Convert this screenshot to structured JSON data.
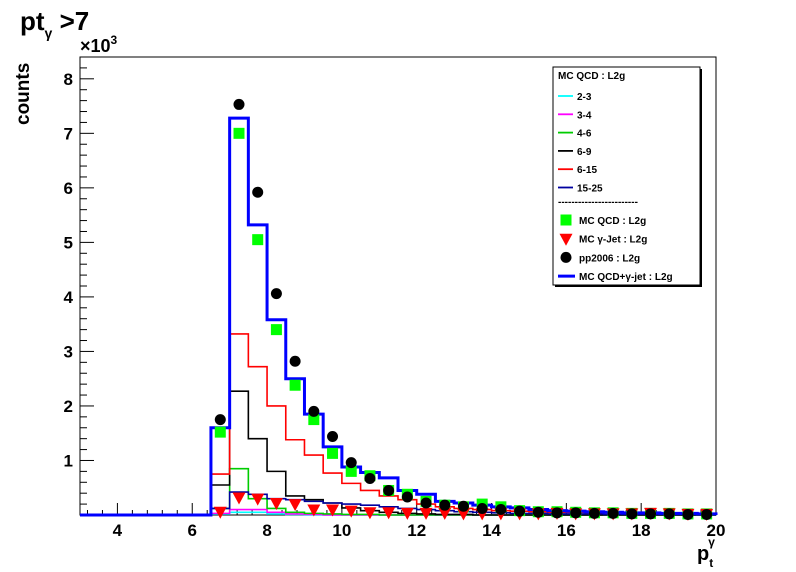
{
  "chart_data": {
    "type": "line",
    "title_main": "pt",
    "title_sub": "γ",
    "title_rest": " >7",
    "ylabel": "counts",
    "xlabel_main": "p",
    "xlabel_sub": "t",
    "xlabel_sup": "γ",
    "multiplier_base": "×10",
    "multiplier_exp": "3",
    "xlim": [
      3,
      20
    ],
    "ylim": [
      0,
      8.4
    ],
    "xticks": [
      4,
      6,
      8,
      10,
      12,
      14,
      16,
      18,
      20
    ],
    "yticks": [
      1,
      2,
      3,
      4,
      5,
      6,
      7,
      8
    ],
    "bin_edges": [
      3.0,
      3.5,
      4.0,
      4.5,
      5.0,
      5.5,
      6.0,
      6.5,
      7.0,
      7.5,
      8.0,
      8.5,
      9.0,
      9.5,
      10.0,
      10.5,
      11.0,
      11.5,
      12.0,
      12.5,
      13.0,
      13.5,
      14.0,
      14.5,
      15.0,
      15.5,
      16.0,
      16.5,
      17.0,
      17.5,
      18.0,
      18.5,
      19.0,
      19.5,
      20.0
    ],
    "legend": {
      "header": "MC QCD : L2g",
      "separator": "------------------------",
      "placement": "top-right"
    },
    "histograms": [
      {
        "name": "2-3",
        "color": "#00ffff",
        "values": [
          0,
          0,
          0,
          0,
          0,
          0,
          0,
          0.02,
          0.05,
          0.05,
          0.02,
          0.01,
          0,
          0,
          0,
          0,
          0,
          0,
          0,
          0,
          0,
          0,
          0,
          0,
          0,
          0,
          0,
          0,
          0,
          0,
          0,
          0,
          0,
          0
        ]
      },
      {
        "name": "3-4",
        "color": "#ff00ff",
        "values": [
          0,
          0,
          0,
          0,
          0,
          0,
          0,
          0.03,
          0.1,
          0.1,
          0.05,
          0.02,
          0.01,
          0,
          0,
          0,
          0,
          0,
          0,
          0,
          0,
          0,
          0,
          0,
          0,
          0,
          0,
          0,
          0,
          0,
          0,
          0,
          0,
          0
        ]
      },
      {
        "name": "4-6",
        "color": "#00cc00",
        "values": [
          0,
          0,
          0,
          0,
          0,
          0,
          0,
          0.12,
          0.85,
          0.3,
          0.12,
          0.05,
          0.03,
          0.02,
          0.01,
          0.01,
          0,
          0,
          0,
          0,
          0,
          0,
          0,
          0,
          0,
          0,
          0,
          0,
          0,
          0,
          0,
          0,
          0,
          0
        ]
      },
      {
        "name": "6-9",
        "color": "#000000",
        "values": [
          0,
          0,
          0,
          0,
          0,
          0,
          0,
          0.55,
          2.27,
          1.4,
          0.8,
          0.35,
          0.28,
          0.22,
          0.13,
          0.08,
          0.05,
          0.03,
          0.02,
          0.01,
          0.01,
          0,
          0,
          0,
          0,
          0,
          0,
          0,
          0,
          0,
          0,
          0,
          0,
          0
        ]
      },
      {
        "name": "6-15",
        "color": "#ff0000",
        "values": [
          0,
          0,
          0,
          0,
          0,
          0,
          0,
          0.75,
          3.32,
          2.72,
          2.0,
          1.38,
          1.1,
          0.77,
          0.58,
          0.45,
          0.35,
          0.28,
          0.2,
          0.15,
          0.12,
          0.1,
          0.08,
          0.07,
          0.06,
          0.05,
          0.05,
          0.04,
          0.04,
          0.03,
          0.03,
          0.02,
          0.02,
          0.02
        ]
      },
      {
        "name": "15-25",
        "color": "#0000a0",
        "values": [
          0,
          0,
          0,
          0,
          0,
          0,
          0,
          0.12,
          0.42,
          0.38,
          0.3,
          0.28,
          0.25,
          0.22,
          0.2,
          0.18,
          0.15,
          0.12,
          0.1,
          0.08,
          0.06,
          0.05,
          0.04,
          0.03,
          0.03,
          0.02,
          0.02,
          0.02,
          0.01,
          0.01,
          0.01,
          0.01,
          0.01,
          0.01
        ]
      }
    ],
    "series": [
      {
        "name": "MC QCD : L2g",
        "marker": "square",
        "color": "#00ff00",
        "x": [
          6.75,
          7.25,
          7.75,
          8.25,
          8.75,
          9.25,
          9.75,
          10.25,
          10.75,
          11.25,
          11.75,
          12.25,
          12.75,
          13.25,
          13.75,
          14.25,
          14.75,
          15.25,
          15.75,
          16.25,
          16.75,
          17.25,
          17.75,
          18.25,
          18.75,
          19.25,
          19.75
        ],
        "y": [
          1.52,
          7.0,
          5.05,
          3.4,
          2.38,
          1.75,
          1.13,
          0.8,
          0.72,
          0.45,
          0.38,
          0.25,
          0.18,
          0.15,
          0.2,
          0.15,
          0.08,
          0.06,
          0.06,
          0.05,
          0.04,
          0.04,
          0.03,
          0.03,
          0.03,
          0.02,
          0.02
        ]
      },
      {
        "name": "MC γ-Jet : L2g",
        "marker": "triangle-down",
        "color": "#ff0000",
        "x": [
          6.75,
          7.25,
          7.75,
          8.25,
          8.75,
          9.25,
          9.75,
          10.25,
          10.75,
          11.25,
          11.75,
          12.25,
          12.75,
          13.25,
          13.75,
          14.25,
          14.75,
          15.25,
          15.75,
          16.25,
          16.75,
          17.25,
          17.75,
          18.25,
          18.75,
          19.25,
          19.75
        ],
        "y": [
          0.06,
          0.32,
          0.3,
          0.22,
          0.2,
          0.1,
          0.1,
          0.08,
          0.05,
          0.05,
          0.04,
          0.04,
          0.04,
          0.03,
          0.03,
          0.03,
          0.03,
          0.03,
          0.04,
          0.03,
          0.03,
          0.03,
          0.03,
          0.04,
          0.03,
          0.02,
          0.02
        ]
      },
      {
        "name": "pp2006 : L2g",
        "marker": "circle",
        "color": "#000000",
        "x": [
          6.75,
          7.25,
          7.75,
          8.25,
          8.75,
          9.25,
          9.75,
          10.25,
          10.75,
          11.25,
          11.75,
          12.25,
          12.75,
          13.25,
          13.75,
          14.25,
          14.75,
          15.25,
          15.75,
          16.25,
          16.75,
          17.25,
          17.75,
          18.25,
          18.75,
          19.25,
          19.75
        ],
        "y": [
          1.75,
          7.53,
          5.92,
          4.06,
          2.82,
          1.9,
          1.44,
          0.96,
          0.67,
          0.45,
          0.33,
          0.22,
          0.18,
          0.16,
          0.12,
          0.1,
          0.07,
          0.05,
          0.04,
          0.04,
          0.03,
          0.03,
          0.02,
          0.02,
          0.02,
          0.01,
          0.01
        ]
      },
      {
        "name": "MC QCD+γ-jet : L2g",
        "style": "step",
        "color": "#0000ff",
        "x": [
          3.0,
          3.5,
          4.0,
          4.5,
          5.0,
          5.5,
          6.0,
          6.5,
          7.0,
          7.5,
          8.0,
          8.5,
          9.0,
          9.5,
          10.0,
          10.5,
          11.0,
          11.5,
          12.0,
          12.5,
          13.0,
          13.5,
          14.0,
          14.5,
          15.0,
          15.5,
          16.0,
          16.5,
          17.0,
          17.5,
          18.0,
          18.5,
          19.0,
          19.5
        ],
        "y": [
          0,
          0,
          0,
          0,
          0,
          0,
          0,
          1.6,
          7.28,
          5.32,
          3.58,
          2.5,
          1.85,
          1.25,
          0.88,
          0.78,
          0.68,
          0.45,
          0.38,
          0.25,
          0.22,
          0.18,
          0.15,
          0.13,
          0.1,
          0.08,
          0.07,
          0.06,
          0.05,
          0.04,
          0.04,
          0.03,
          0.03,
          0.02
        ]
      }
    ]
  }
}
